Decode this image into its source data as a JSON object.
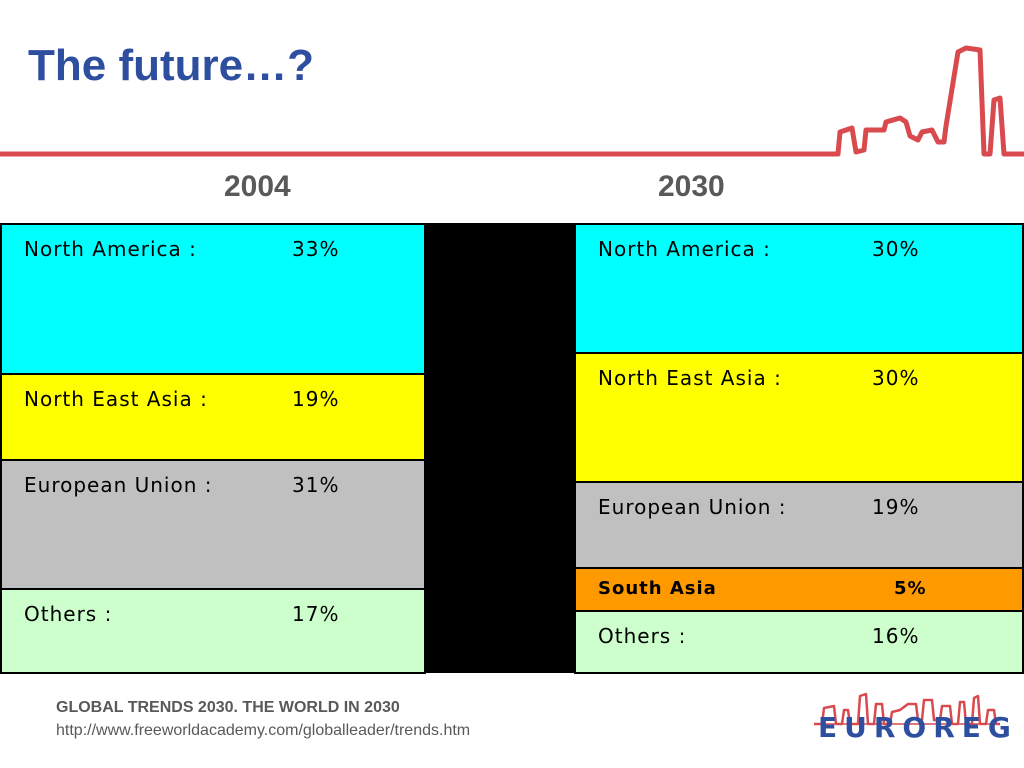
{
  "title": "The future…?",
  "colors": {
    "title": "#2e4fa0",
    "accent_red": "#d94a4f",
    "north_america": "#00ffff",
    "north_east_asia": "#ffff00",
    "european_union": "#c0c0c0",
    "south_asia": "#ff9900",
    "others": "#ccffcc"
  },
  "chart_data": {
    "type": "table",
    "columns": [
      {
        "year": "2004",
        "segments": [
          {
            "label": "North America :",
            "value": "33%",
            "share": 33
          },
          {
            "label": "North East Asia :",
            "value": "19%",
            "share": 19
          },
          {
            "label": "European Union :",
            "value": "31%",
            "share": 31
          },
          {
            "label": "Others :",
            "value": "17%",
            "share": 17
          }
        ]
      },
      {
        "year": "2030",
        "segments": [
          {
            "label": "North America :",
            "value": "30%",
            "share": 30
          },
          {
            "label": "North East Asia :",
            "value": "30%",
            "share": 30
          },
          {
            "label": "European Union :",
            "value": "19%",
            "share": 19
          },
          {
            "label": "South Asia",
            "value": "5%",
            "share": 5
          },
          {
            "label": "Others :",
            "value": "16%",
            "share": 16
          }
        ]
      }
    ]
  },
  "footer": {
    "title": "GLOBAL TRENDS 2030. THE WORLD IN 2030",
    "url": "http://www.freeworldacademy.com/globalleader/trends.htm"
  },
  "logo": {
    "text": "EUROREG",
    "icon": "skyline-icon"
  }
}
